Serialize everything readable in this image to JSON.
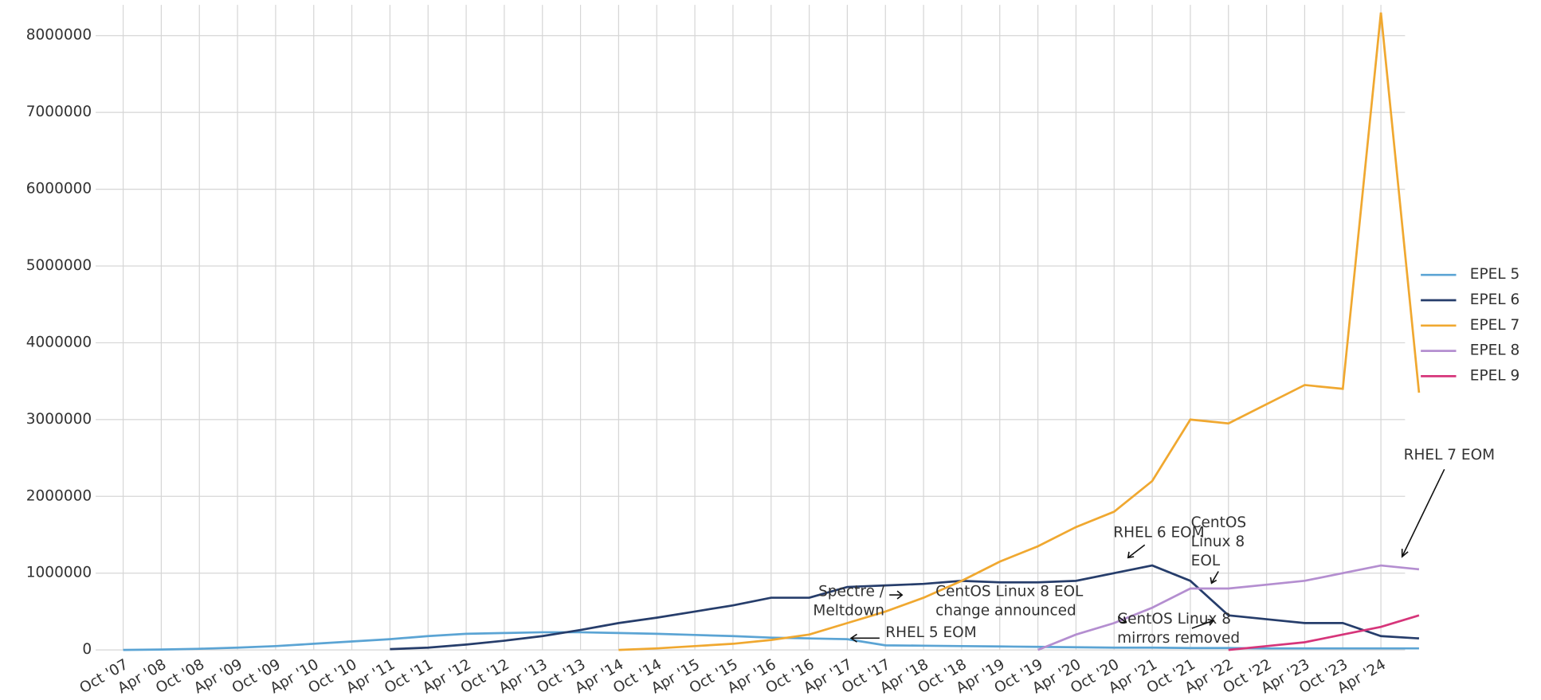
{
  "chart_data": {
    "type": "line",
    "categories": [
      "Oct '07",
      "Apr '08",
      "Oct '08",
      "Apr '09",
      "Oct '09",
      "Apr '10",
      "Oct '10",
      "Apr '11",
      "Oct '11",
      "Apr '12",
      "Oct '12",
      "Apr '13",
      "Oct '13",
      "Apr '14",
      "Oct '14",
      "Apr '15",
      "Oct '15",
      "Apr '16",
      "Oct '16",
      "Apr '17",
      "Oct '17",
      "Apr '18",
      "Oct '18",
      "Apr '19",
      "Oct '19",
      "Apr '20",
      "Oct '20",
      "Apr '21",
      "Oct '21",
      "Apr '22",
      "Oct '22",
      "Apr '23",
      "Oct '23",
      "Apr '24",
      null
    ],
    "series": [
      {
        "name": "EPEL 5",
        "color": "#5ba4d4",
        "values": [
          0,
          5000,
          15000,
          30000,
          50000,
          80000,
          110000,
          140000,
          180000,
          210000,
          220000,
          230000,
          230000,
          220000,
          210000,
          195000,
          180000,
          160000,
          150000,
          140000,
          60000,
          55000,
          50000,
          45000,
          40000,
          35000,
          30000,
          30000,
          25000,
          25000,
          20000,
          20000,
          20000,
          20000,
          20000
        ]
      },
      {
        "name": "EPEL 6",
        "color": "#263d6b",
        "values": [
          null,
          null,
          null,
          null,
          null,
          null,
          null,
          10000,
          30000,
          70000,
          120000,
          180000,
          260000,
          350000,
          420000,
          500000,
          580000,
          680000,
          680000,
          820000,
          840000,
          860000,
          900000,
          880000,
          880000,
          900000,
          1000000,
          1100000,
          900000,
          450000,
          400000,
          350000,
          350000,
          180000,
          150000
        ]
      },
      {
        "name": "EPEL 7",
        "color": "#f0a830",
        "values": [
          null,
          null,
          null,
          null,
          null,
          null,
          null,
          null,
          null,
          null,
          null,
          null,
          null,
          0,
          20000,
          50000,
          80000,
          130000,
          200000,
          350000,
          500000,
          680000,
          900000,
          1150000,
          1350000,
          1600000,
          1800000,
          2200000,
          3000000,
          2950000,
          3200000,
          3450000,
          3400000,
          8300000,
          3350000
        ]
      },
      {
        "name": "EPEL 8",
        "color": "#b48ed0",
        "values": [
          null,
          null,
          null,
          null,
          null,
          null,
          null,
          null,
          null,
          null,
          null,
          null,
          null,
          null,
          null,
          null,
          null,
          null,
          null,
          null,
          null,
          null,
          null,
          null,
          0,
          200000,
          350000,
          550000,
          800000,
          800000,
          850000,
          900000,
          1000000,
          1100000,
          1050000
        ]
      },
      {
        "name": "EPEL 9",
        "color": "#d6357a",
        "values": [
          null,
          null,
          null,
          null,
          null,
          null,
          null,
          null,
          null,
          null,
          null,
          null,
          null,
          null,
          null,
          null,
          null,
          null,
          null,
          null,
          null,
          null,
          null,
          null,
          null,
          null,
          null,
          null,
          null,
          0,
          50000,
          100000,
          200000,
          300000,
          450000
        ]
      }
    ],
    "ylim": [
      0,
      8400000
    ],
    "yticks": [
      0,
      1000000,
      2000000,
      3000000,
      4000000,
      5000000,
      6000000,
      7000000,
      8000000
    ],
    "grid": true,
    "legend": "right",
    "annotations": [
      {
        "lines": [
          "RHEL 5 EOM"
        ]
      },
      {
        "lines": [
          "Spectre /",
          "Meltdown"
        ]
      },
      {
        "lines": [
          "CentOS Linux 8 EOL",
          "change announced"
        ]
      },
      {
        "lines": [
          "RHEL 6 EOM"
        ]
      },
      {
        "lines": [
          "CentOS",
          "Linux 8",
          "EOL"
        ]
      },
      {
        "lines": [
          "CentOS Linux 8",
          "mirrors removed"
        ]
      },
      {
        "lines": [
          "RHEL 7 EOM"
        ]
      }
    ]
  }
}
